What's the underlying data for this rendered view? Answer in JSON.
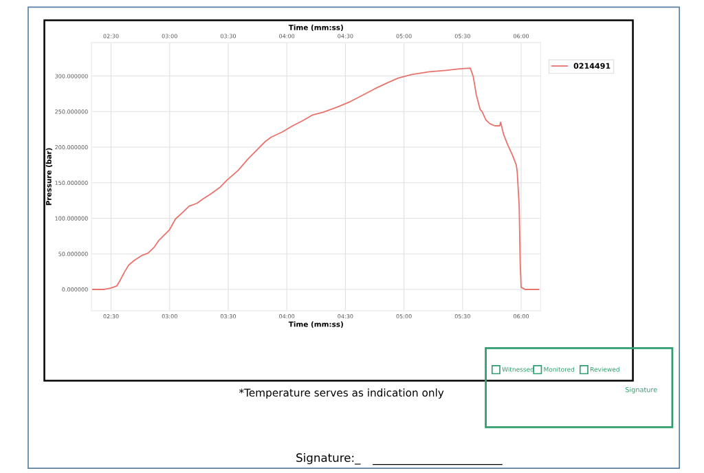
{
  "chart_data": {
    "type": "line",
    "xlabel": "Time (mm:ss)",
    "x2label": "Time (mm:ss)",
    "ylabel": "Pressure (bar)",
    "xlim": [
      140,
      370
    ],
    "x2lim": [
      140,
      370
    ],
    "xticks": [
      {
        "value": 150,
        "label": "02:30"
      },
      {
        "value": 180,
        "label": "03:00"
      },
      {
        "value": 210,
        "label": "03:30"
      },
      {
        "value": 240,
        "label": "04:00"
      },
      {
        "value": 270,
        "label": "04:30"
      },
      {
        "value": 300,
        "label": "05:00"
      },
      {
        "value": 330,
        "label": "05:30"
      },
      {
        "value": 360,
        "label": "06:00"
      }
    ],
    "x2ticks": [
      {
        "value": 150,
        "label": "02:30"
      },
      {
        "value": 180,
        "label": "03:00"
      },
      {
        "value": 210,
        "label": "03:30"
      },
      {
        "value": 240,
        "label": "04:00"
      },
      {
        "value": 270,
        "label": "04:30"
      },
      {
        "value": 300,
        "label": "05:00"
      },
      {
        "value": 330,
        "label": "05:30"
      },
      {
        "value": 360,
        "label": "06:00"
      }
    ],
    "ylim": [
      -30,
      347
    ],
    "yticks": [
      {
        "value": 0,
        "label": "0.000000"
      },
      {
        "value": 50,
        "label": "50.000000"
      },
      {
        "value": 100,
        "label": "100.000000"
      },
      {
        "value": 150,
        "label": "150.000000"
      },
      {
        "value": 200,
        "label": "200.000000"
      },
      {
        "value": 250,
        "label": "250.000000"
      },
      {
        "value": 300,
        "label": "300.000000"
      }
    ],
    "grid": true,
    "legend": "top right",
    "marker": "none",
    "line_style": "solid",
    "series": [
      {
        "name": "0214491",
        "color": "#e8736c",
        "x": [
          140.5,
          146.5,
          150,
          153,
          154.5,
          157,
          159,
          162,
          166,
          169,
          172,
          174.5,
          180,
          183,
          187,
          190,
          194,
          197,
          201,
          206,
          209.5,
          215,
          220,
          224,
          229,
          232,
          237.5,
          243,
          248,
          253,
          258.5,
          265.5,
          272.5,
          279.5,
          285,
          292,
          297,
          304,
          313,
          321.5,
          328.5,
          334,
          335.5,
          337,
          339,
          340,
          342,
          344,
          346.5,
          349,
          349.5,
          351,
          353,
          355.5,
          357.5,
          358,
          359,
          359.5,
          360,
          362,
          369
        ],
        "values": [
          0,
          0,
          2,
          5,
          12,
          25,
          34,
          41,
          48,
          51,
          59,
          69,
          84,
          99,
          109,
          117,
          121,
          127,
          134,
          144,
          154,
          167,
          183,
          194,
          208,
          214,
          221,
          230,
          237,
          245,
          249,
          256,
          264,
          274,
          282,
          291,
          297,
          302,
          306,
          308,
          310,
          311,
          299,
          274,
          253,
          250,
          238,
          233,
          230,
          230,
          235,
          218,
          204,
          189,
          175,
          165,
          117,
          39,
          3,
          0,
          0
        ]
      }
    ],
    "annotations": [
      "*Temperature serves as indication only",
      "Signature:_",
      "Witnessed",
      "Monitored",
      "Reviewed",
      "Signature"
    ]
  }
}
